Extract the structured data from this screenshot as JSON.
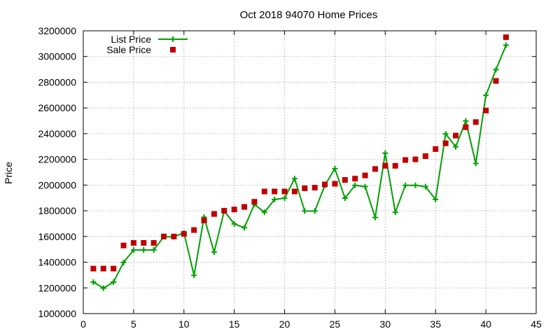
{
  "chart_data": {
    "type": "line",
    "title": "Oct 2018 94070 Home Prices",
    "xlabel": "",
    "ylabel": "Price",
    "xlim": [
      0,
      45
    ],
    "ylim": [
      1000000,
      3200000
    ],
    "xticks": [
      0,
      5,
      10,
      15,
      20,
      25,
      30,
      35,
      40,
      45
    ],
    "yticks": [
      1000000,
      1200000,
      1400000,
      1600000,
      1800000,
      2000000,
      2200000,
      2400000,
      2600000,
      2800000,
      3000000,
      3200000
    ],
    "grid": true,
    "legend_position": "top-left",
    "x": [
      1,
      2,
      3,
      4,
      5,
      6,
      7,
      8,
      9,
      10,
      11,
      12,
      13,
      14,
      15,
      16,
      17,
      18,
      19,
      20,
      21,
      22,
      23,
      24,
      25,
      26,
      27,
      28,
      29,
      30,
      31,
      32,
      33,
      34,
      35,
      36,
      37,
      38,
      39,
      40,
      41,
      42
    ],
    "series": [
      {
        "name": "List Price",
        "style": "linespoints",
        "color": "#00a000",
        "values": [
          1245000,
          1198000,
          1245000,
          1398000,
          1495000,
          1495000,
          1495000,
          1598000,
          1598000,
          1628000,
          1298000,
          1750000,
          1478000,
          1798000,
          1698000,
          1668000,
          1850000,
          1788000,
          1888000,
          1898000,
          2050000,
          1798000,
          1798000,
          1998000,
          2128000,
          1898000,
          1998000,
          1988000,
          1748000,
          2248000,
          1788000,
          1998000,
          1998000,
          1988000,
          1888000,
          2398000,
          2298000,
          2498000,
          2168000,
          2698000,
          2898000,
          3088000
        ]
      },
      {
        "name": "Sale Price",
        "style": "points",
        "color": "#c00000",
        "values": [
          1350000,
          1350000,
          1350000,
          1530000,
          1550000,
          1550000,
          1550000,
          1600000,
          1600000,
          1620000,
          1650000,
          1725000,
          1775000,
          1800000,
          1810000,
          1830000,
          1870000,
          1950000,
          1950000,
          1950000,
          1950000,
          1975000,
          1980000,
          2005000,
          2010000,
          2040000,
          2050000,
          2075000,
          2125000,
          2150000,
          2150000,
          2195000,
          2200000,
          2225000,
          2280000,
          2325000,
          2385000,
          2450000,
          2490000,
          2580000,
          2810000,
          3150000
        ]
      }
    ]
  }
}
